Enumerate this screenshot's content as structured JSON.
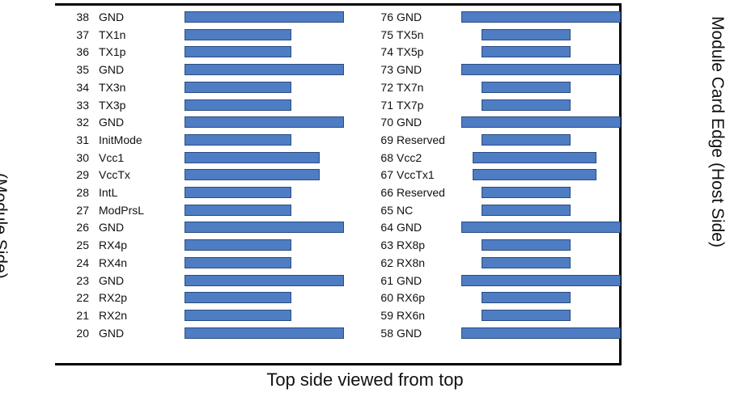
{
  "diagram": {
    "left_label": "(Module Side)",
    "right_label": "Module Card Edge (Host Side)",
    "caption": "Top side viewed from top",
    "pad_color": "#4f7dc4",
    "left_pins": [
      {
        "num": "38",
        "signal": "GND",
        "pad": "long"
      },
      {
        "num": "37",
        "signal": "TX1n",
        "pad": "short"
      },
      {
        "num": "36",
        "signal": "TX1p",
        "pad": "short"
      },
      {
        "num": "35",
        "signal": "GND",
        "pad": "long"
      },
      {
        "num": "34",
        "signal": "TX3n",
        "pad": "short"
      },
      {
        "num": "33",
        "signal": "TX3p",
        "pad": "short"
      },
      {
        "num": "32",
        "signal": "GND",
        "pad": "long"
      },
      {
        "num": "31",
        "signal": "InitMode",
        "pad": "short"
      },
      {
        "num": "30",
        "signal": "Vcc1",
        "pad": "medium"
      },
      {
        "num": "29",
        "signal": "VccTx",
        "pad": "medium"
      },
      {
        "num": "28",
        "signal": "IntL",
        "pad": "short"
      },
      {
        "num": "27",
        "signal": "ModPrsL",
        "pad": "short"
      },
      {
        "num": "26",
        "signal": "GND",
        "pad": "long"
      },
      {
        "num": "25",
        "signal": "RX4p",
        "pad": "short"
      },
      {
        "num": "24",
        "signal": "RX4n",
        "pad": "short"
      },
      {
        "num": "23",
        "signal": "GND",
        "pad": "long"
      },
      {
        "num": "22",
        "signal": "RX2p",
        "pad": "short"
      },
      {
        "num": "21",
        "signal": "RX2n",
        "pad": "short"
      },
      {
        "num": "20",
        "signal": "GND",
        "pad": "long"
      }
    ],
    "right_pins": [
      {
        "num": "76",
        "signal": "GND",
        "pad": "long"
      },
      {
        "num": "75",
        "signal": "TX5n",
        "pad": "short"
      },
      {
        "num": "74",
        "signal": "TX5p",
        "pad": "short"
      },
      {
        "num": "73",
        "signal": "GND",
        "pad": "long"
      },
      {
        "num": "72",
        "signal": "TX7n",
        "pad": "short"
      },
      {
        "num": "71",
        "signal": "TX7p",
        "pad": "short"
      },
      {
        "num": "70",
        "signal": "GND",
        "pad": "long"
      },
      {
        "num": "69",
        "signal": "Reserved",
        "pad": "short"
      },
      {
        "num": "68",
        "signal": "Vcc2",
        "pad": "medium"
      },
      {
        "num": "67",
        "signal": "VccTx1",
        "pad": "medium"
      },
      {
        "num": "66",
        "signal": "Reserved",
        "pad": "short"
      },
      {
        "num": "65",
        "signal": "NC",
        "pad": "short"
      },
      {
        "num": "64",
        "signal": "GND",
        "pad": "long"
      },
      {
        "num": "63",
        "signal": "RX8p",
        "pad": "short"
      },
      {
        "num": "62",
        "signal": "RX8n",
        "pad": "short"
      },
      {
        "num": "61",
        "signal": "GND",
        "pad": "long"
      },
      {
        "num": "60",
        "signal": "RX6p",
        "pad": "short"
      },
      {
        "num": "59",
        "signal": "RX6n",
        "pad": "short"
      },
      {
        "num": "58",
        "signal": "GND",
        "pad": "long"
      }
    ]
  }
}
